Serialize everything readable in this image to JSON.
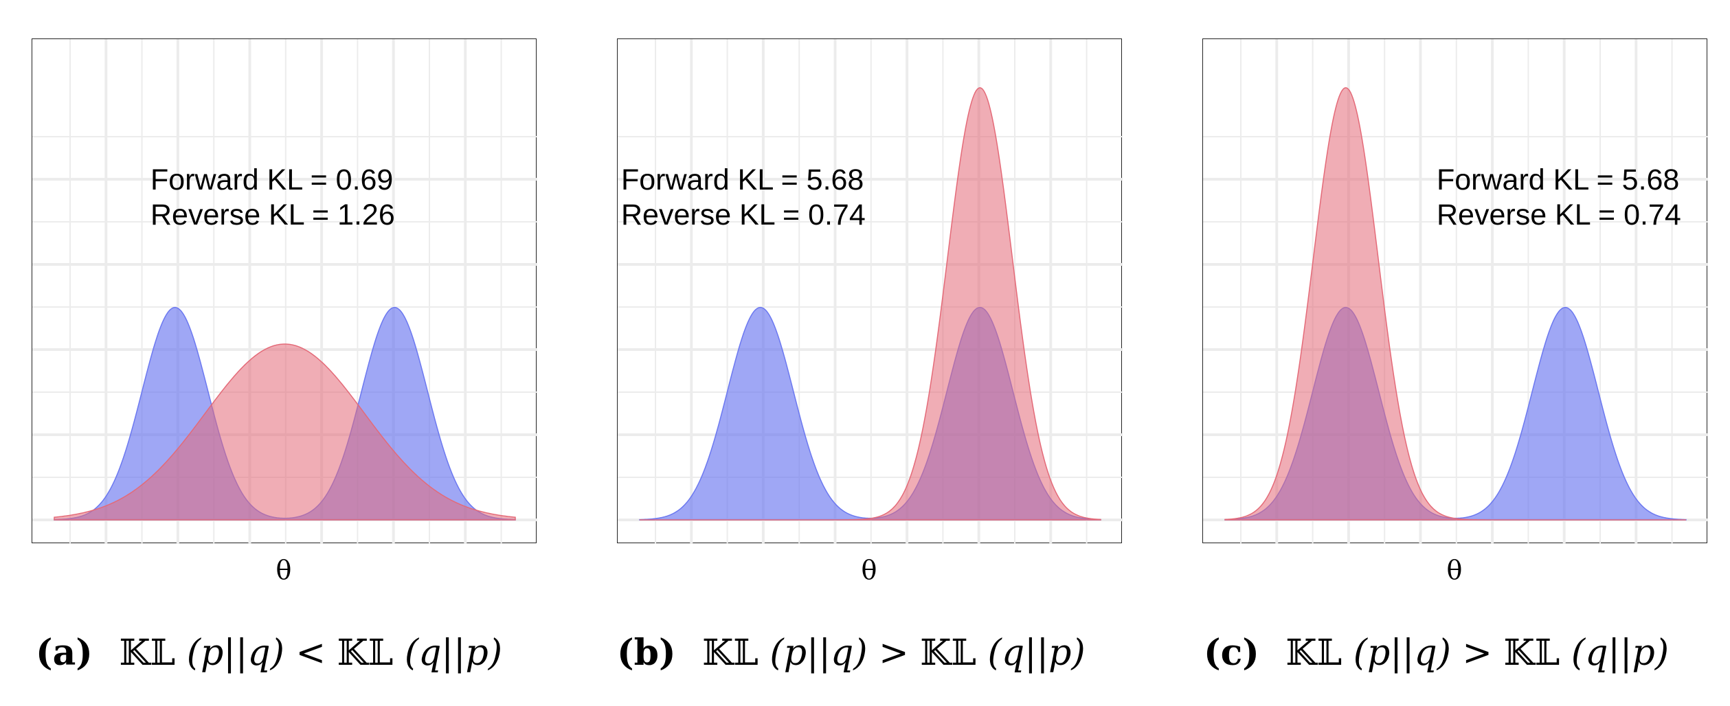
{
  "chart_data": [
    {
      "type": "area",
      "xlabel": "θ",
      "annotation": {
        "forward": "Forward KL = 0.69",
        "reverse": "Reverse KL = 1.26"
      },
      "caption": {
        "tag": "(a)",
        "kl": "𝕂𝕃",
        "lhs": "(p||q)",
        "op": "<",
        "rhs": "(q||p)"
      },
      "xlim": [
        -4.2,
        4.2
      ],
      "ylim": [
        0,
        0.72
      ],
      "series": [
        {
          "kind": "p",
          "color": "#6b78f0",
          "components": [
            {
              "mu": -2,
              "sigma": 0.6,
              "w": 0.5
            },
            {
              "mu": 2,
              "sigma": 0.6,
              "w": 0.5
            }
          ]
        },
        {
          "kind": "q",
          "color": "#e46a78",
          "components": [
            {
              "mu": 0,
              "sigma": 1.45,
              "w": 1
            }
          ]
        }
      ]
    },
    {
      "type": "area",
      "xlabel": "θ",
      "annotation": {
        "forward": "Forward KL = 5.68",
        "reverse": "Reverse KL = 0.74"
      },
      "caption": {
        "tag": "(b)",
        "kl": "𝕂𝕃",
        "lhs": "(p||q)",
        "op": ">",
        "rhs": "(q||p)"
      },
      "xlim": [
        -4.2,
        4.2
      ],
      "ylim": [
        0,
        0.72
      ],
      "series": [
        {
          "kind": "p",
          "color": "#6b78f0",
          "components": [
            {
              "mu": -2,
              "sigma": 0.6,
              "w": 0.5
            },
            {
              "mu": 2,
              "sigma": 0.6,
              "w": 0.5
            }
          ]
        },
        {
          "kind": "q",
          "color": "#e46a78",
          "components": [
            {
              "mu": 2,
              "sigma": 0.59,
              "w": 1
            }
          ]
        }
      ]
    },
    {
      "type": "area",
      "xlabel": "θ",
      "annotation": {
        "forward": "Forward KL = 5.68",
        "reverse": "Reverse KL = 0.74"
      },
      "caption": {
        "tag": "(c)",
        "kl": "𝕂𝕃",
        "lhs": "(p||q)",
        "op": ">",
        "rhs": "(q||p)"
      },
      "xlim": [
        -4.2,
        4.2
      ],
      "ylim": [
        0,
        0.72
      ],
      "series": [
        {
          "kind": "p",
          "color": "#6b78f0",
          "components": [
            {
              "mu": -2,
              "sigma": 0.6,
              "w": 0.5
            },
            {
              "mu": 2,
              "sigma": 0.6,
              "w": 0.5
            }
          ]
        },
        {
          "kind": "q",
          "color": "#e46a78",
          "components": [
            {
              "mu": -2,
              "sigma": 0.59,
              "w": 1
            }
          ]
        }
      ]
    }
  ]
}
